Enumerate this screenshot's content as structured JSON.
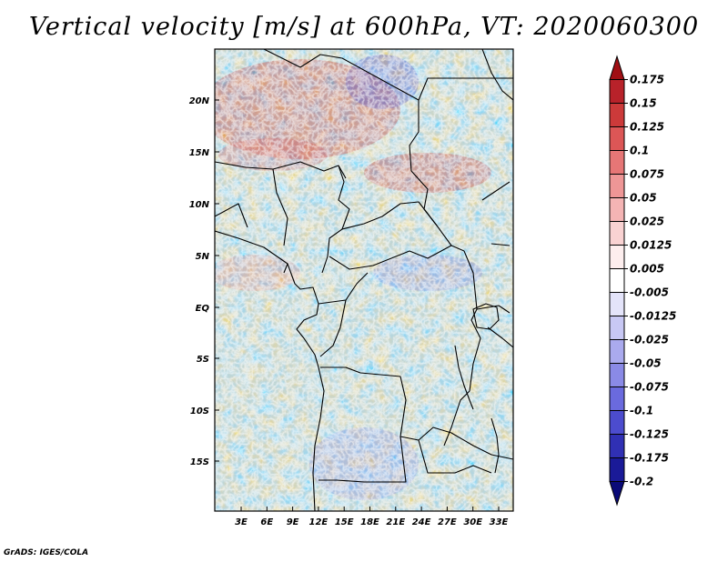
{
  "title": "Vertical velocity [m/s] at 600hPa, VT: 2020060300",
  "credit": "GrADS: IGES/COLA",
  "map": {
    "lat_labels": [
      "20N",
      "15N",
      "10N",
      "5N",
      "EQ",
      "5S",
      "10S",
      "15S"
    ],
    "lon_labels": [
      "3E",
      "6E",
      "9E",
      "12E",
      "15E",
      "18E",
      "21E",
      "24E",
      "27E",
      "30E",
      "33E"
    ]
  },
  "colorbar": {
    "labels": [
      "0.175",
      "0.15",
      "0.125",
      "0.1",
      "0.075",
      "0.05",
      "0.025",
      "0.0125",
      "0.005",
      "-0.005",
      "-0.0125",
      "-0.025",
      "-0.05",
      "-0.075",
      "-0.1",
      "-0.125",
      "-0.175",
      "-0.2"
    ],
    "colors": [
      "#a00f14",
      "#b8222a",
      "#cc3a3a",
      "#dc5656",
      "#e67676",
      "#ee9696",
      "#f4b4b4",
      "#f9d2d2",
      "#fdeeee",
      "#ffffff",
      "#e4e4fa",
      "#c8c8f4",
      "#aaaaee",
      "#8a8ae6",
      "#6a6ade",
      "#4c4cce",
      "#3030b4",
      "#1a1a98",
      "#0a0a78"
    ]
  }
}
